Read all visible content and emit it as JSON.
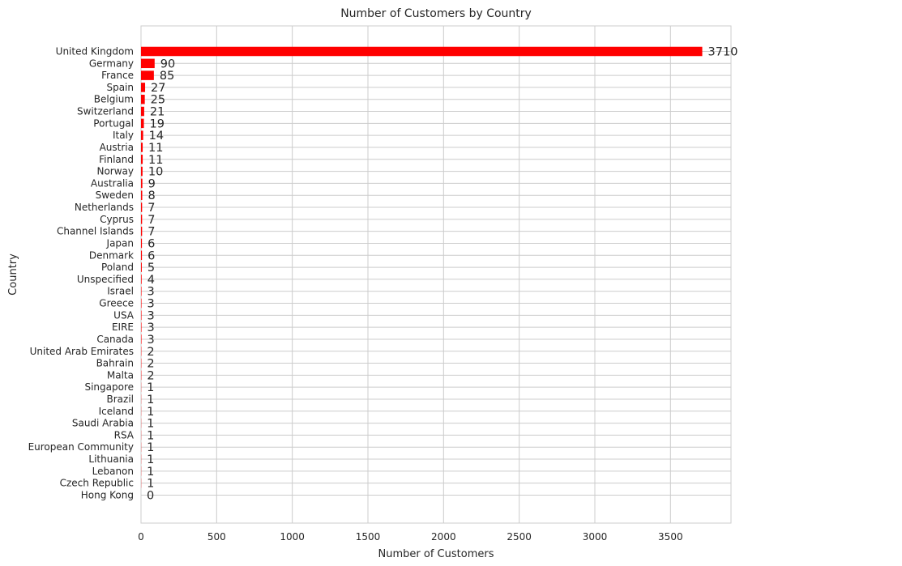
{
  "chart_data": {
    "type": "bar",
    "orientation": "horizontal",
    "title": "Number of Customers by Country",
    "xlabel": "Number of Customers",
    "ylabel": "Country",
    "xlim": [
      0,
      3900
    ],
    "xticks": [
      0,
      500,
      1000,
      1500,
      2000,
      2500,
      3000,
      3500
    ],
    "grid": true,
    "bar_color": "#ff0000",
    "categories": [
      "United Kingdom",
      "Germany",
      "France",
      "Spain",
      "Belgium",
      "Switzerland",
      "Portugal",
      "Italy",
      "Austria",
      "Finland",
      "Norway",
      "Australia",
      "Sweden",
      "Netherlands",
      "Cyprus",
      "Channel Islands",
      "Japan",
      "Denmark",
      "Poland",
      "Unspecified",
      "Israel",
      "Greece",
      "USA",
      "EIRE",
      "Canada",
      "United Arab Emirates",
      "Bahrain",
      "Malta",
      "Singapore",
      "Brazil",
      "Iceland",
      "Saudi Arabia",
      "RSA",
      "European Community",
      "Lithuania",
      "Lebanon",
      "Czech Republic",
      "Hong Kong"
    ],
    "values": [
      3710,
      90,
      85,
      27,
      25,
      21,
      19,
      14,
      11,
      11,
      10,
      9,
      8,
      7,
      7,
      7,
      6,
      6,
      5,
      4,
      3,
      3,
      3,
      3,
      3,
      2,
      2,
      2,
      1,
      1,
      1,
      1,
      1,
      1,
      1,
      1,
      1,
      0
    ]
  }
}
